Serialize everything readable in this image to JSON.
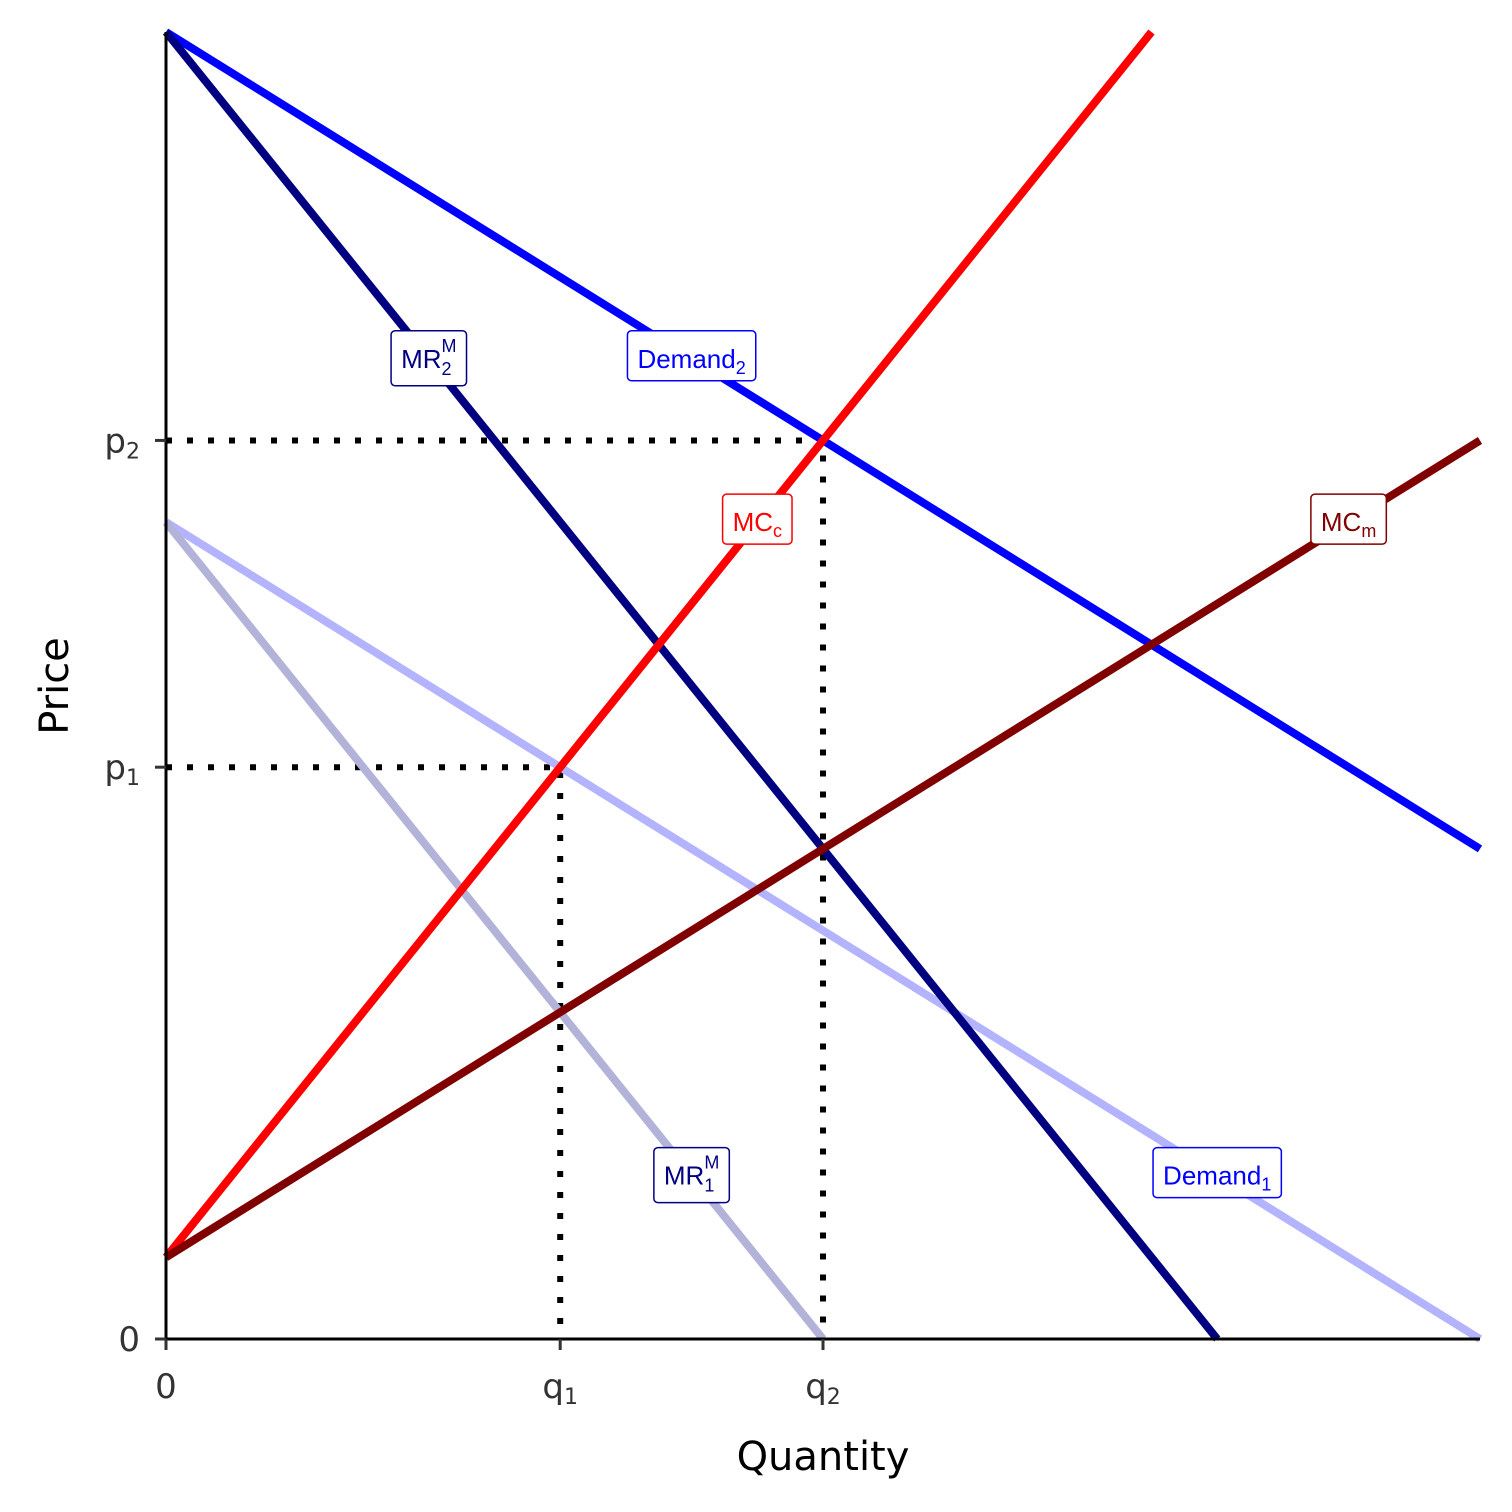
{
  "chart_data": {
    "type": "line",
    "xlabel": "Quantity",
    "ylabel": "Price",
    "xlim": [
      0,
      10
    ],
    "ylim": [
      0,
      10
    ],
    "grid": false,
    "legend": "none",
    "x_ticks": [
      {
        "value": 0,
        "base": "0",
        "sub": ""
      },
      {
        "value": 3,
        "base": "q",
        "sub": "1"
      },
      {
        "value": 5,
        "base": "q",
        "sub": "2"
      }
    ],
    "y_ticks": [
      {
        "value": 0,
        "base": "0",
        "sub": ""
      },
      {
        "value": 4.375,
        "base": "p",
        "sub": "1"
      },
      {
        "value": 6.875,
        "base": "p",
        "sub": "2"
      }
    ],
    "series": [
      {
        "id": "demand1",
        "color": "#b3b3ff",
        "points": [
          [
            0,
            6.25
          ],
          [
            10,
            0
          ]
        ]
      },
      {
        "id": "mr1",
        "color": "#b3b3d9",
        "points": [
          [
            0,
            6.25
          ],
          [
            5,
            0
          ]
        ]
      },
      {
        "id": "demand2",
        "color": "#0000ff",
        "points": [
          [
            0,
            10
          ],
          [
            10,
            3.75
          ]
        ]
      },
      {
        "id": "mr2",
        "color": "#000080",
        "points": [
          [
            0,
            10
          ],
          [
            8,
            0
          ]
        ]
      },
      {
        "id": "mcc",
        "color": "#ff0000",
        "points": [
          [
            0,
            0.625
          ],
          [
            7.5,
            10
          ]
        ]
      },
      {
        "id": "mcm",
        "color": "#800000",
        "points": [
          [
            0,
            0.625
          ],
          [
            10,
            6.875
          ]
        ]
      }
    ],
    "guides": [
      {
        "points": [
          [
            0,
            4.375
          ],
          [
            3,
            4.375
          ],
          [
            3,
            0
          ]
        ]
      },
      {
        "points": [
          [
            0,
            6.875
          ],
          [
            5,
            6.875
          ],
          [
            5,
            0
          ]
        ]
      }
    ],
    "annotations": [
      {
        "base": "MR",
        "sub": "2",
        "sup": "M",
        "x": 2,
        "y": 7.5,
        "color": "#000080"
      },
      {
        "base": "Demand",
        "sub": "2",
        "sup": "",
        "x": 4,
        "y": 7.5,
        "color": "#0000ff"
      },
      {
        "base": "MC",
        "sub": "c",
        "sup": "",
        "x": 4.5,
        "y": 6.25,
        "color": "#ff0000"
      },
      {
        "base": "MC",
        "sub": "m",
        "sup": "",
        "x": 9,
        "y": 6.25,
        "color": "#800000"
      },
      {
        "base": "MR",
        "sub": "1",
        "sup": "M",
        "x": 4,
        "y": 1.25,
        "color": "#000080"
      },
      {
        "base": "Demand",
        "sub": "1",
        "sup": "",
        "x": 8,
        "y": 1.25,
        "color": "#0000ff"
      }
    ]
  }
}
